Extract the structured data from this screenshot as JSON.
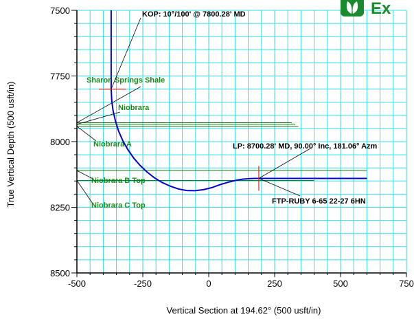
{
  "chart_data": {
    "type": "line",
    "title": "",
    "xlabel": "Vertical Section at 194.62° (500 usft/in)",
    "ylabel": "True Vertical Depth (500 usft/in)",
    "xlim": [
      -500,
      750
    ],
    "ylim": [
      8500,
      7500
    ],
    "xticks": [
      "-500",
      "-250",
      "0",
      "250",
      "500",
      "750"
    ],
    "yticks": [
      "7500",
      "7750",
      "8000",
      "8250",
      "8500"
    ],
    "grid": true,
    "series": [
      {
        "color": "#0000cc",
        "x": [
          -370,
          -370,
          -368,
          -363,
          -354,
          -342,
          -326,
          -307,
          -285,
          -261,
          -235,
          -207,
          -178,
          -147,
          -116,
          -84,
          -52,
          -20,
          12,
          43,
          73,
          101,
          128,
          152,
          173,
          191,
          600
        ],
        "y": [
          7500,
          7800,
          7841,
          7881,
          7921,
          7960,
          7996,
          8030,
          8062,
          8090,
          8115,
          8137,
          8155,
          8169,
          8180,
          8186,
          8187,
          8183,
          8175,
          8164,
          8155,
          8148,
          8143,
          8141,
          8140,
          8140,
          8140
        ]
      }
    ],
    "formations": [
      {
        "label": "Sharon Springs Shale",
        "depth": 7928,
        "x_end": 315
      },
      {
        "label": "Niobrara",
        "depth": 7934,
        "x_end": 328
      },
      {
        "label": "Niobrara A",
        "depth": 7942,
        "x_end": 340
      },
      {
        "label": "Niobrara B Top",
        "depth": 8110,
        "x_end": 600
      },
      {
        "label": "Niobrara C Top",
        "depth": 8148,
        "x_end": 400
      }
    ],
    "annotations": [
      {
        "label": "KOP: 10°/100' @ 7800.28' MD"
      },
      {
        "label": "LP:  8700.28' MD, 90.00° Inc, 181.06° Azm"
      },
      {
        "label": "FTP-RUBY 6-65 22-27 6HN"
      }
    ]
  },
  "logo": {
    "text": "Ex",
    "color": "#1a8a2e"
  }
}
